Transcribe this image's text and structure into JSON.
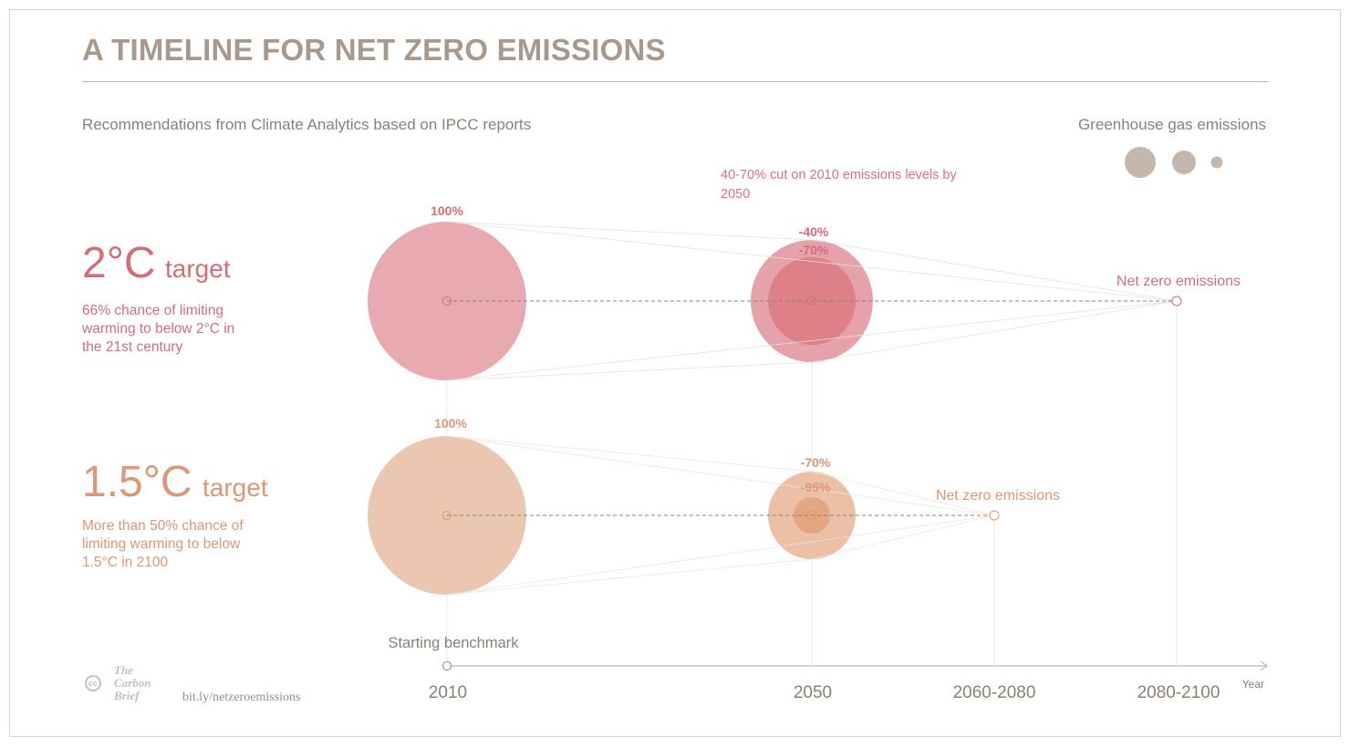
{
  "title": "A TIMELINE FOR NET ZERO EMISSIONS",
  "subtitle": "Recommendations from Climate Analytics based on IPCC reports",
  "legend": {
    "title": "Greenhouse gas emissions",
    "color": "#c4b8ae"
  },
  "annotation": "40-70% cut on 2010 emissions levels by 2050",
  "targets": [
    {
      "big": "2°C",
      "word": "target",
      "description": "66% chance of limiting warming to below 2°C in the 21st century",
      "color": "#d26e7a",
      "circle_2010_color": "#e9a9b0",
      "circle_2050_outer_color": "#e6a2aa",
      "circle_2050_inner_color": "#de8088",
      "start_label": "100%",
      "mid_label_a": "-40%",
      "mid_label_b": "-70%",
      "netzero_label": "Net zero emissions",
      "netzero_year": "2080-2100",
      "emissions_share": {
        "2010": 1.0,
        "2050_high": 0.6,
        "2050_low": 0.3
      }
    },
    {
      "big": "1.5°C",
      "word": "target",
      "description": "More than 50% chance of limiting warming to below 1.5°C in 2100",
      "color": "#dc9775",
      "circle_2010_color": "#ebc6b0",
      "circle_2050_outer_color": "#ecc0a6",
      "circle_2050_inner_color": "#e4a680",
      "start_label": "100%",
      "mid_label_a": "-70%",
      "mid_label_b": "-95%",
      "netzero_label": "Net zero emissions",
      "netzero_year": "2060-2080",
      "emissions_share": {
        "2010": 1.0,
        "2050_high": 0.3,
        "2050_low": 0.05
      }
    }
  ],
  "timeline": {
    "benchmark_label": "Starting benchmark",
    "years": [
      "2010",
      "2050",
      "2060-2080",
      "2080-2100"
    ],
    "axis_label": "Year"
  },
  "footer": {
    "brand": "The Carbon Brief",
    "cc_icon": "cc-icon",
    "link": "bit.ly/netzeroemissions"
  }
}
